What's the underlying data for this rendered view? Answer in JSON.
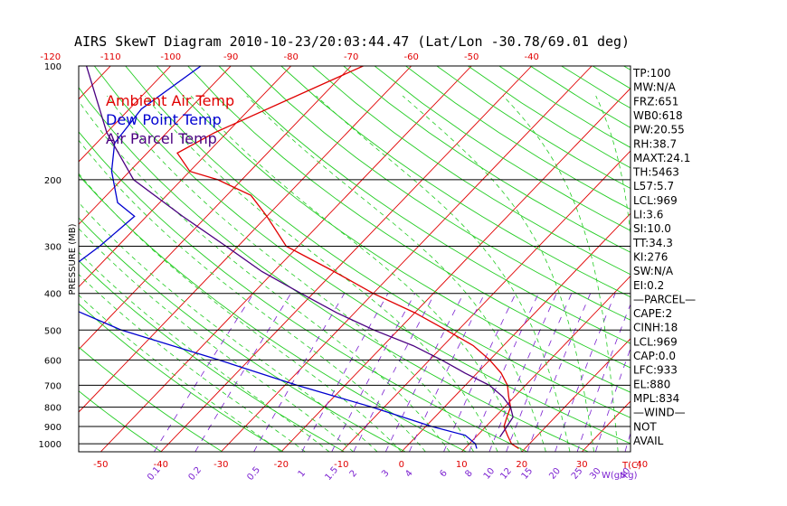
{
  "chart_data": {
    "type": "line",
    "subtype": "skewt-log-p",
    "title": "AIRS SkewT Diagram 2010-10-23/20:03:44.47 (Lat/Lon -30.78/69.01 deg)",
    "ylabel": "PRESSURE (MB)",
    "xlabel": "T(C)",
    "mixing_ratio_label": "W(g/kg)",
    "ylim": [
      1050,
      100
    ],
    "xlim": [
      -52,
      48
    ],
    "pressure_ticks": [
      "100",
      "200",
      "300",
      "400",
      "500",
      "600",
      "700",
      "800",
      "900",
      "1000"
    ],
    "pressure_tick_values": [
      100,
      200,
      300,
      400,
      500,
      600,
      700,
      800,
      900,
      1000
    ],
    "top_temp_ticks": [
      "-120",
      "-110",
      "-100",
      "-90",
      "-80",
      "-70",
      "-60",
      "-50",
      "-40"
    ],
    "top_temp_values": [
      -120,
      -110,
      -100,
      -90,
      -80,
      -70,
      -60,
      -50,
      -40
    ],
    "bottom_temp_ticks": [
      "-50",
      "-40",
      "-30",
      "-20",
      "-10",
      "0",
      "10",
      "20",
      "30",
      "40"
    ],
    "bottom_temp_values": [
      -50,
      -40,
      -30,
      -20,
      -10,
      0,
      10,
      20,
      30,
      40
    ],
    "mixing_ratio_ticks": [
      "0.1",
      "0.2",
      "0.5",
      "1",
      "1.5",
      "2",
      "3",
      "4",
      "6",
      "8",
      "10",
      "12",
      "15",
      "20",
      "25",
      "30",
      "40"
    ],
    "mixing_ratio_values": [
      0.1,
      0.2,
      0.5,
      1,
      1.5,
      2,
      3,
      4,
      6,
      8,
      10,
      12,
      15,
      20,
      25,
      30,
      40
    ],
    "legend_position": "top-left",
    "series": [
      {
        "name": "Ambient Air Temp",
        "color": "#e00000",
        "points": [
          [
            -68,
            100
          ],
          [
            -82,
            150
          ],
          [
            -85,
            170
          ],
          [
            -80,
            190
          ],
          [
            -74,
            200
          ],
          [
            -66,
            220
          ],
          [
            -60,
            250
          ],
          [
            -52,
            300
          ],
          [
            -40,
            350
          ],
          [
            -30,
            400
          ],
          [
            -20,
            450
          ],
          [
            -12,
            500
          ],
          [
            -5,
            550
          ],
          [
            0,
            600
          ],
          [
            4,
            650
          ],
          [
            7,
            700
          ],
          [
            9,
            750
          ],
          [
            11,
            800
          ],
          [
            12,
            850
          ],
          [
            13,
            900
          ],
          [
            15,
            950
          ],
          [
            17,
            1000
          ],
          [
            19,
            1030
          ]
        ]
      },
      {
        "name": "Dew Point Temp",
        "color": "#0000d0",
        "points": [
          [
            -95,
            100
          ],
          [
            -98,
            130
          ],
          [
            -97,
            160
          ],
          [
            -93,
            190
          ],
          [
            -87,
            230
          ],
          [
            -82,
            250
          ],
          [
            -83,
            300
          ],
          [
            -86,
            400
          ],
          [
            -66,
            500
          ],
          [
            -45,
            600
          ],
          [
            -28,
            700
          ],
          [
            -12,
            800
          ],
          [
            1,
            900
          ],
          [
            8,
            950
          ],
          [
            11,
            1000
          ],
          [
            12,
            1030
          ]
        ]
      },
      {
        "name": "Air Parcel Temp",
        "color": "#4a0080",
        "points": [
          [
            -114,
            100
          ],
          [
            -100,
            150
          ],
          [
            -88,
            200
          ],
          [
            -74,
            250
          ],
          [
            -62,
            300
          ],
          [
            -52,
            350
          ],
          [
            -42,
            400
          ],
          [
            -33,
            450
          ],
          [
            -24,
            500
          ],
          [
            -15,
            550
          ],
          [
            -8,
            600
          ],
          [
            -2,
            650
          ],
          [
            4,
            700
          ],
          [
            8,
            750
          ],
          [
            11,
            800
          ],
          [
            13,
            850
          ],
          [
            13.5,
            900
          ],
          [
            14,
            960
          ]
        ]
      }
    ],
    "wind_note": "NOT AVAIL"
  },
  "indices": [
    "TP:100",
    "MW:N/A",
    "FRZ:651",
    "WB0:618",
    "PW:20.55",
    "RH:38.7",
    "MAXT:24.1",
    "TH:5463",
    "L57:5.7",
    "LCL:969",
    "LI:3.6",
    "SI:10.0",
    "TT:34.3",
    "KI:276",
    "SW:N/A",
    "EI:0.2",
    "—PARCEL—",
    "CAPE:2",
    "CINH:18",
    "LCL:969",
    "CAP:0.0",
    "LFC:933",
    "EL:880",
    "MPL:834",
    "—WIND—",
    "NOT",
    "AVAIL"
  ],
  "colors": {
    "isotherm": "#e00000",
    "dry_adiabat": "#22cc22",
    "moist_adiabat": "#22cc22",
    "mixing_ratio": "#7a1fd0",
    "frame": "#000000"
  }
}
